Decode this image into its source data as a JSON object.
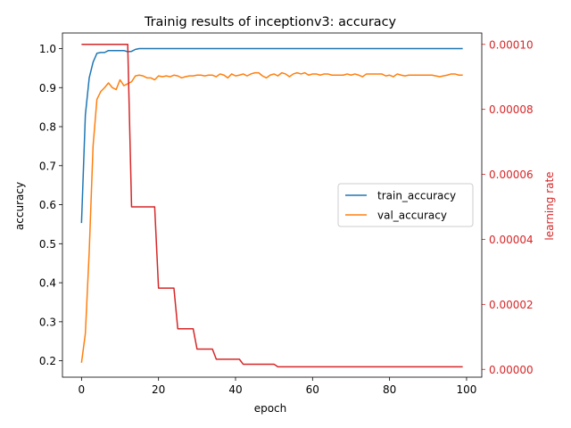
{
  "chart_data": {
    "type": "line",
    "title": "Trainig results of inceptionv3: accuracy",
    "xlabel": "epoch",
    "ylabel": "accuracy",
    "y2label": "learning rate",
    "xlim": [
      -4.95,
      103.95
    ],
    "ylim": [
      0.158,
      1.04
    ],
    "y2lim": [
      -2.4e-06,
      0.0001035
    ],
    "xticks": [
      0,
      20,
      40,
      60,
      80,
      100
    ],
    "xtick_labels": [
      "0",
      "20",
      "40",
      "60",
      "80",
      "100"
    ],
    "yticks": [
      0.2,
      0.3,
      0.4,
      0.5,
      0.6,
      0.7,
      0.8,
      0.9,
      1.0
    ],
    "ytick_labels": [
      "0.2",
      "0.3",
      "0.4",
      "0.5",
      "0.6",
      "0.7",
      "0.8",
      "0.9",
      "1.0"
    ],
    "y2ticks": [
      0.0,
      2e-05,
      4e-05,
      6e-05,
      8e-05,
      0.0001
    ],
    "y2tick_labels": [
      "0.00000",
      "0.00002",
      "0.00004",
      "0.00006",
      "0.00008",
      "0.00010"
    ],
    "legend_position": "center-right",
    "series": [
      {
        "name": "train_accuracy",
        "axis": "left",
        "color": "#1f77b4",
        "x": [
          0,
          1,
          2,
          3,
          4,
          5,
          6,
          7,
          8,
          9,
          10,
          11,
          12,
          13,
          14,
          15,
          20,
          30,
          40,
          50,
          60,
          70,
          80,
          90,
          99
        ],
        "values": [
          0.553,
          0.83,
          0.925,
          0.965,
          0.988,
          0.99,
          0.99,
          0.995,
          0.995,
          0.995,
          0.995,
          0.995,
          0.992,
          0.993,
          0.998,
          1.0,
          1.0,
          1.0,
          1.0,
          1.0,
          1.0,
          1.0,
          1.0,
          1.0,
          1.0
        ]
      },
      {
        "name": "val_accuracy",
        "axis": "left",
        "color": "#ff7f0e",
        "x": [
          0,
          1,
          2,
          3,
          4,
          5,
          6,
          7,
          8,
          9,
          10,
          11,
          12,
          13,
          14,
          15,
          16,
          17,
          18,
          19,
          20,
          21,
          22,
          23,
          24,
          25,
          26,
          27,
          28,
          29,
          30,
          31,
          32,
          33,
          34,
          35,
          36,
          37,
          38,
          39,
          40,
          41,
          42,
          43,
          44,
          45,
          46,
          47,
          48,
          49,
          50,
          51,
          52,
          53,
          54,
          55,
          56,
          57,
          58,
          59,
          60,
          61,
          62,
          63,
          64,
          65,
          66,
          67,
          68,
          69,
          70,
          71,
          72,
          73,
          74,
          75,
          76,
          77,
          78,
          79,
          80,
          81,
          82,
          83,
          84,
          85,
          86,
          87,
          88,
          89,
          90,
          91,
          92,
          93,
          94,
          95,
          96,
          97,
          98,
          99
        ],
        "values": [
          0.195,
          0.27,
          0.48,
          0.75,
          0.87,
          0.89,
          0.9,
          0.912,
          0.9,
          0.895,
          0.92,
          0.905,
          0.91,
          0.915,
          0.93,
          0.932,
          0.93,
          0.925,
          0.925,
          0.92,
          0.93,
          0.928,
          0.93,
          0.928,
          0.932,
          0.93,
          0.925,
          0.928,
          0.93,
          0.93,
          0.932,
          0.932,
          0.93,
          0.932,
          0.932,
          0.928,
          0.935,
          0.932,
          0.925,
          0.935,
          0.93,
          0.932,
          0.935,
          0.93,
          0.935,
          0.938,
          0.938,
          0.93,
          0.925,
          0.932,
          0.935,
          0.93,
          0.938,
          0.935,
          0.928,
          0.935,
          0.938,
          0.935,
          0.938,
          0.932,
          0.935,
          0.935,
          0.932,
          0.935,
          0.935,
          0.932,
          0.932,
          0.932,
          0.932,
          0.935,
          0.932,
          0.935,
          0.932,
          0.928,
          0.935,
          0.935,
          0.935,
          0.935,
          0.935,
          0.93,
          0.932,
          0.928,
          0.935,
          0.932,
          0.93,
          0.932,
          0.932,
          0.932,
          0.932,
          0.932,
          0.932,
          0.932,
          0.93,
          0.928,
          0.93,
          0.932,
          0.935,
          0.935,
          0.932,
          0.932
        ]
      },
      {
        "name": "learning_rate",
        "axis": "right",
        "color": "#d62728",
        "x": [
          0,
          12,
          13,
          19,
          20,
          24,
          25,
          29,
          30,
          34,
          35,
          41,
          42,
          50,
          51,
          99
        ],
        "values": [
          0.0001,
          0.0001,
          5e-05,
          5e-05,
          2.5e-05,
          2.5e-05,
          1.25e-05,
          1.25e-05,
          6.25e-06,
          6.25e-06,
          3.125e-06,
          3.125e-06,
          1.5625e-06,
          1.5625e-06,
          7.8125e-07,
          7.8125e-07
        ]
      }
    ],
    "legend": [
      "train_accuracy",
      "val_accuracy"
    ]
  }
}
